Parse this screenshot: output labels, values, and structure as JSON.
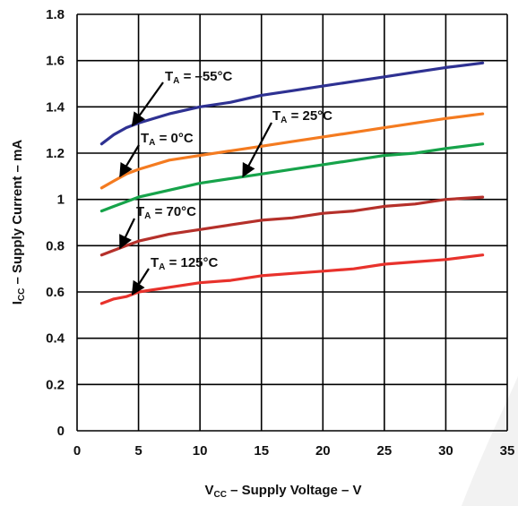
{
  "chart_data": {
    "type": "line",
    "title": "",
    "xlabel": {
      "main": "V",
      "sub": "CC",
      "rest": " – Supply Voltage – V"
    },
    "ylabel": {
      "main": "I",
      "sub": "CC",
      "rest": " – Supply Current – mA"
    },
    "xlim": [
      0,
      35
    ],
    "ylim": [
      0,
      1.8
    ],
    "x_ticks": [
      0,
      5,
      10,
      15,
      20,
      25,
      30,
      35
    ],
    "y_ticks": [
      "0",
      "0.2",
      "0.4",
      "0.6",
      "0.8",
      "1",
      "1.2",
      "1.4",
      "1.6",
      "1.8"
    ],
    "y_tick_values": [
      0,
      0.2,
      0.4,
      0.6,
      0.8,
      1.0,
      1.2,
      1.4,
      1.6,
      1.8
    ],
    "grid": true,
    "series": [
      {
        "name": "T_A = –55°C",
        "color": "#2e3192",
        "x": [
          2,
          3,
          4,
          5,
          7.5,
          10,
          12.5,
          15,
          17.5,
          20,
          22.5,
          25,
          27.5,
          30,
          33
        ],
        "y": [
          1.24,
          1.28,
          1.31,
          1.33,
          1.37,
          1.4,
          1.42,
          1.45,
          1.47,
          1.49,
          1.51,
          1.53,
          1.55,
          1.57,
          1.59
        ]
      },
      {
        "name": "T_A = 25°C",
        "color": "#f47b20",
        "x": [
          2,
          3,
          4,
          5,
          7.5,
          10,
          12.5,
          15,
          17.5,
          20,
          22.5,
          25,
          27.5,
          30,
          33
        ],
        "y": [
          1.05,
          1.08,
          1.11,
          1.13,
          1.17,
          1.19,
          1.21,
          1.23,
          1.25,
          1.27,
          1.29,
          1.31,
          1.33,
          1.35,
          1.37
        ]
      },
      {
        "name": "T_A = 0°C",
        "color": "#16a34a",
        "x": [
          2,
          3,
          4,
          5,
          7.5,
          10,
          12.5,
          15,
          17.5,
          20,
          22.5,
          25,
          27.5,
          30,
          33
        ],
        "y": [
          0.95,
          0.97,
          0.99,
          1.01,
          1.04,
          1.07,
          1.09,
          1.11,
          1.13,
          1.15,
          1.17,
          1.19,
          1.2,
          1.22,
          1.24
        ]
      },
      {
        "name": "T_A = 70°C",
        "color": "#b5302a",
        "x": [
          2,
          3,
          4,
          5,
          7.5,
          10,
          12.5,
          15,
          17.5,
          20,
          22.5,
          25,
          27.5,
          30,
          33
        ],
        "y": [
          0.76,
          0.78,
          0.8,
          0.82,
          0.85,
          0.87,
          0.89,
          0.91,
          0.92,
          0.94,
          0.95,
          0.97,
          0.98,
          1.0,
          1.01
        ]
      },
      {
        "name": "T_A = 125°C",
        "color": "#e8322c",
        "x": [
          2,
          3,
          4,
          5,
          7.5,
          10,
          12.5,
          15,
          17.5,
          20,
          22.5,
          25,
          27.5,
          30,
          33
        ],
        "y": [
          0.55,
          0.57,
          0.58,
          0.6,
          0.62,
          0.64,
          0.65,
          0.67,
          0.68,
          0.69,
          0.7,
          0.72,
          0.73,
          0.74,
          0.76
        ]
      }
    ],
    "annotations": [
      {
        "text_main": "T",
        "text_sub": "A",
        "text_rest": " = –55°C",
        "points_to": [
          4.5,
          1.32
        ]
      },
      {
        "text_main": "T",
        "text_sub": "A",
        "text_rest": " = 25°C",
        "points_to": [
          13.5,
          1.1
        ]
      },
      {
        "text_main": "T",
        "text_sub": "A",
        "text_rest": " = 0°C",
        "points_to": [
          3.5,
          1.1
        ]
      },
      {
        "text_main": "T",
        "text_sub": "A",
        "text_rest": " = 70°C",
        "points_to": [
          3.5,
          0.79
        ]
      },
      {
        "text_main": "T",
        "text_sub": "A",
        "text_rest": " = 125°C",
        "points_to": [
          4.5,
          0.59
        ]
      }
    ]
  }
}
